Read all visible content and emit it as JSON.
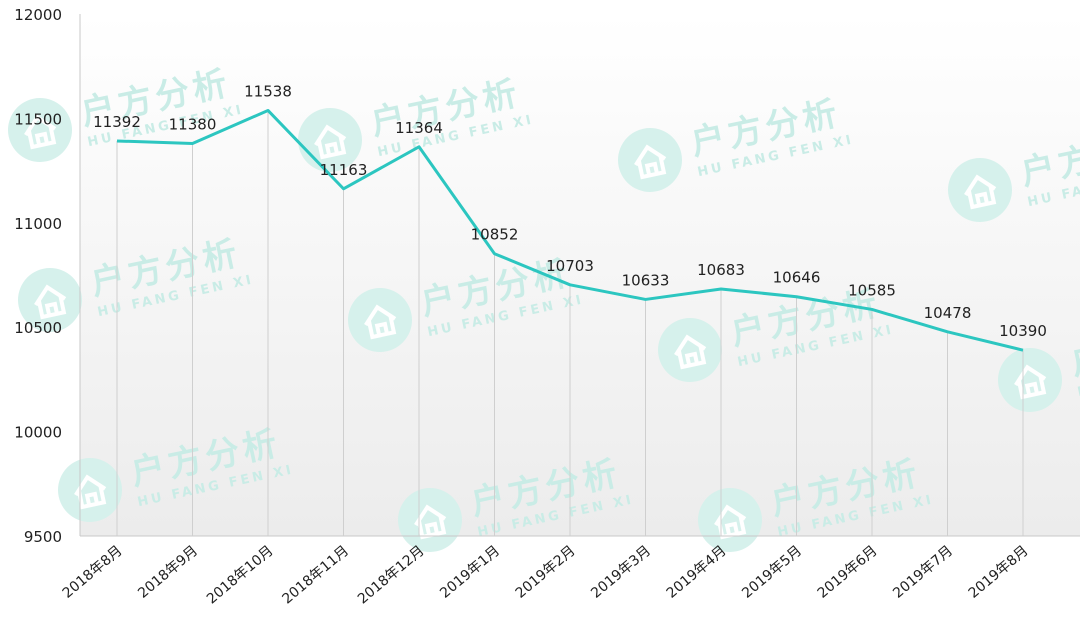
{
  "chart_data": {
    "type": "line",
    "categories": [
      "2018年8月",
      "2018年9月",
      "2018年10月",
      "2018年11月",
      "2018年12月",
      "2019年1月",
      "2019年2月",
      "2019年3月",
      "2019年4月",
      "2019年5月",
      "2019年6月",
      "2019年7月",
      "2019年8月"
    ],
    "series": [
      {
        "values": [
          11392,
          11380,
          11538,
          11163,
          11364,
          10852,
          10703,
          10633,
          10683,
          10646,
          10585,
          10478,
          10390
        ]
      }
    ],
    "yticks": [
      9500,
      10000,
      10500,
      11000,
      11500,
      12000
    ],
    "ylim": [
      9500,
      12000
    ],
    "grid": "vertical",
    "line_color": "#2cc6c0"
  },
  "watermark": {
    "text": "户方分析",
    "subtext": "HU FANG FEN XI",
    "icon": "house-icon"
  }
}
